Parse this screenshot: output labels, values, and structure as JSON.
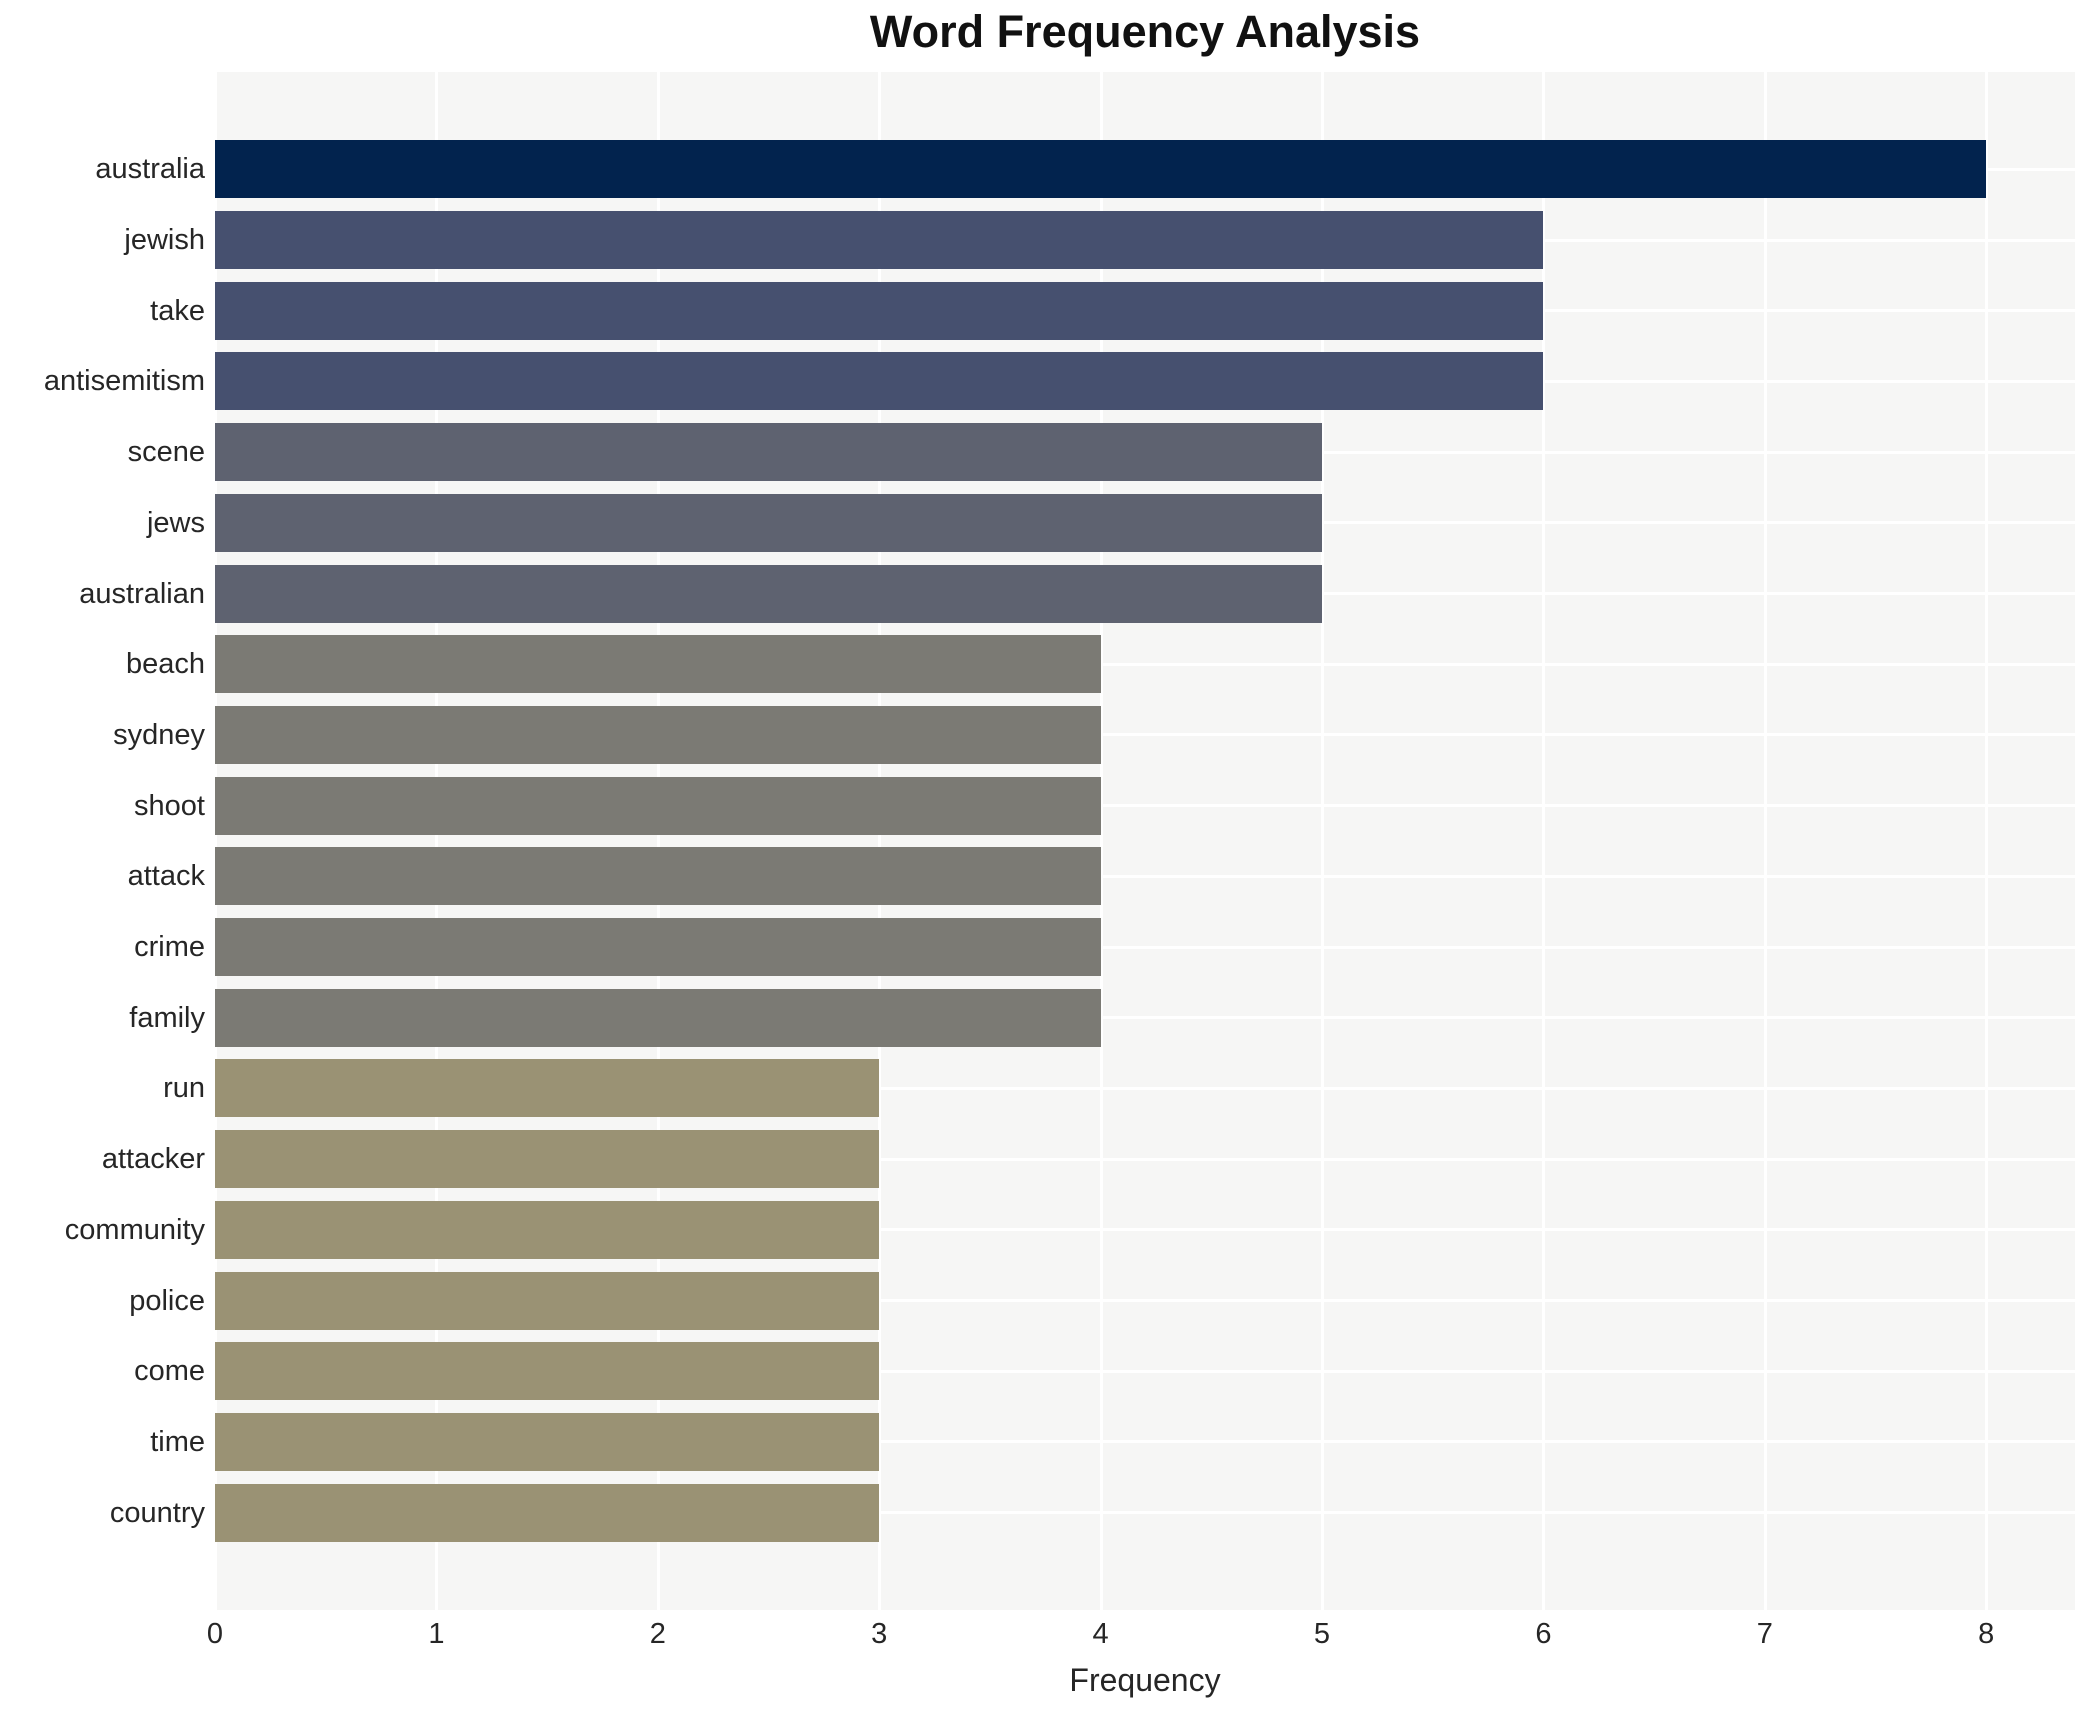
{
  "title": "Word Frequency Analysis",
  "chart_data": {
    "type": "bar",
    "orientation": "horizontal",
    "title": "Word Frequency Analysis",
    "xlabel": "Frequency",
    "ylabel": "",
    "xlim": [
      0,
      8
    ],
    "xticks": [
      0,
      1,
      2,
      3,
      4,
      5,
      6,
      7,
      8
    ],
    "grid": true,
    "legend": "none",
    "categories": [
      "australia",
      "jewish",
      "take",
      "antisemitism",
      "scene",
      "jews",
      "australian",
      "beach",
      "sydney",
      "shoot",
      "attack",
      "crime",
      "family",
      "run",
      "attacker",
      "community",
      "police",
      "come",
      "time",
      "country"
    ],
    "values": [
      8,
      6,
      6,
      6,
      5,
      5,
      5,
      4,
      4,
      4,
      4,
      4,
      4,
      3,
      3,
      3,
      3,
      3,
      3,
      3
    ],
    "bar_colors_by_value": {
      "8": "#02234e",
      "6": "#46506f",
      "5": "#5e6270",
      "4": "#7b7a74",
      "3": "#9a9274"
    },
    "colors": {
      "figure_bg": "#ffffff",
      "plot_bg": "#f6f6f5",
      "grid": "#ffffff",
      "text": "#262626",
      "title_text": "#111111"
    }
  }
}
